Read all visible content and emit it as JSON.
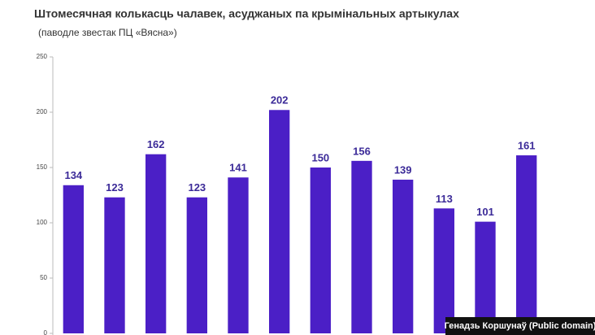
{
  "chart_data": {
    "type": "bar",
    "title": "Штомесячная колькасць чалавек, асуджаных па крымінальных артыкулах",
    "subtitle": "(паводле звестак ПЦ «Вясна»)",
    "credit": "Генадзь Коршунаў (Public domain)",
    "categories": [
      null,
      null,
      null,
      null,
      null,
      null,
      null,
      null,
      null,
      null,
      null,
      null
    ],
    "values": [
      134,
      123,
      162,
      123,
      141,
      202,
      150,
      156,
      139,
      113,
      101,
      161
    ],
    "color": "#4b1fc6",
    "ylim": [
      0,
      250
    ],
    "yticks": [
      0,
      50,
      100,
      150,
      200,
      250
    ],
    "grid": false
  }
}
